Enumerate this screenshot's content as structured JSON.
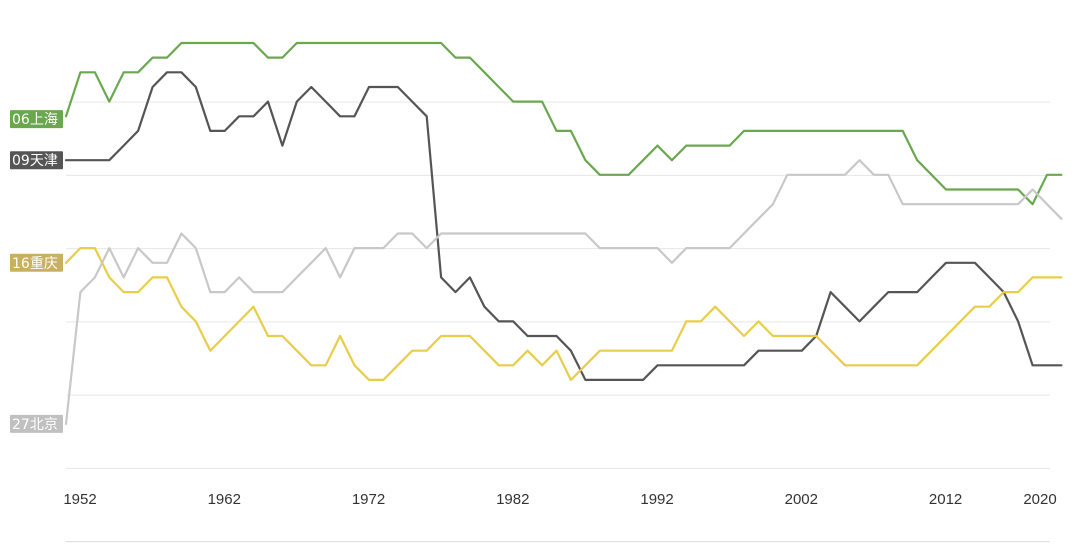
{
  "chart_data": {
    "type": "line",
    "title": "",
    "xlabel": "",
    "ylabel": "",
    "xlim": [
      1952,
      2020
    ],
    "ylim": [
      1,
      35
    ],
    "y_inverted": true,
    "x_ticks": [
      1952,
      1962,
      1972,
      1982,
      1992,
      2002,
      2012,
      2020
    ],
    "y_gridlines": [
      5,
      10,
      15,
      20,
      25,
      30,
      35
    ],
    "grid": "horizontal",
    "legend": "none",
    "series": [
      {
        "name": "06上海",
        "color": "#6aa84f",
        "points": [
          [
            1952,
            6
          ],
          [
            1953,
            3
          ],
          [
            1954,
            3
          ],
          [
            1955,
            5
          ],
          [
            1956,
            3
          ],
          [
            1957,
            3
          ],
          [
            1958,
            2
          ],
          [
            1959,
            2
          ],
          [
            1960,
            1
          ],
          [
            1965,
            1
          ],
          [
            1966,
            2
          ],
          [
            1967,
            2
          ],
          [
            1968,
            1
          ],
          [
            1978,
            1
          ],
          [
            1979,
            2
          ],
          [
            1980,
            2
          ],
          [
            1981,
            3
          ],
          [
            1982,
            4
          ],
          [
            1983,
            5
          ],
          [
            1984,
            5
          ],
          [
            1985,
            5
          ],
          [
            1986,
            7
          ],
          [
            1987,
            7
          ],
          [
            1988,
            9
          ],
          [
            1989,
            10
          ],
          [
            1990,
            10
          ],
          [
            1991,
            10
          ],
          [
            1992,
            9
          ],
          [
            1993,
            8
          ],
          [
            1994,
            9
          ],
          [
            1995,
            8
          ],
          [
            1996,
            8
          ],
          [
            1997,
            8
          ],
          [
            1998,
            8
          ],
          [
            1999,
            7
          ],
          [
            2000,
            7
          ],
          [
            2010,
            7
          ],
          [
            2011,
            9
          ],
          [
            2012,
            10
          ],
          [
            2013,
            11
          ],
          [
            2018,
            11
          ],
          [
            2019,
            12
          ],
          [
            2020,
            10
          ],
          [
            2021,
            10
          ]
        ]
      },
      {
        "name": "09天津",
        "color": "#555555",
        "points": [
          [
            1952,
            9
          ],
          [
            1955,
            9
          ],
          [
            1956,
            8
          ],
          [
            1957,
            7
          ],
          [
            1958,
            4
          ],
          [
            1959,
            3
          ],
          [
            1960,
            3
          ],
          [
            1961,
            4
          ],
          [
            1962,
            7
          ],
          [
            1963,
            7
          ],
          [
            1964,
            6
          ],
          [
            1965,
            6
          ],
          [
            1966,
            5
          ],
          [
            1967,
            8
          ],
          [
            1968,
            5
          ],
          [
            1969,
            4
          ],
          [
            1970,
            5
          ],
          [
            1971,
            6
          ],
          [
            1972,
            6
          ],
          [
            1973,
            4
          ],
          [
            1974,
            4
          ],
          [
            1975,
            4
          ],
          [
            1976,
            5
          ],
          [
            1977,
            6
          ],
          [
            1978,
            17
          ],
          [
            1979,
            18
          ],
          [
            1980,
            17
          ],
          [
            1981,
            19
          ],
          [
            1982,
            20
          ],
          [
            1983,
            20
          ],
          [
            1984,
            21
          ],
          [
            1986,
            21
          ],
          [
            1987,
            22
          ],
          [
            1988,
            24
          ],
          [
            1992,
            24
          ],
          [
            1993,
            23
          ],
          [
            1999,
            23
          ],
          [
            2000,
            22
          ],
          [
            2003,
            22
          ],
          [
            2004,
            21
          ],
          [
            2005,
            18
          ],
          [
            2006,
            19
          ],
          [
            2007,
            20
          ],
          [
            2008,
            19
          ],
          [
            2009,
            18
          ],
          [
            2011,
            18
          ],
          [
            2012,
            17
          ],
          [
            2013,
            16
          ],
          [
            2015,
            16
          ],
          [
            2016,
            17
          ],
          [
            2017,
            18
          ],
          [
            2018,
            20
          ],
          [
            2019,
            23
          ],
          [
            2020,
            23
          ],
          [
            2021,
            23
          ]
        ]
      },
      {
        "name": "16重庆",
        "color": "#e8cd48",
        "points": [
          [
            1952,
            16
          ],
          [
            1953,
            15
          ],
          [
            1954,
            15
          ],
          [
            1955,
            17
          ],
          [
            1956,
            18
          ],
          [
            1957,
            18
          ],
          [
            1958,
            17
          ],
          [
            1959,
            17
          ],
          [
            1960,
            19
          ],
          [
            1961,
            20
          ],
          [
            1962,
            22
          ],
          [
            1963,
            21
          ],
          [
            1964,
            20
          ],
          [
            1965,
            19
          ],
          [
            1966,
            21
          ],
          [
            1967,
            21
          ],
          [
            1968,
            22
          ],
          [
            1969,
            23
          ],
          [
            1970,
            23
          ],
          [
            1971,
            21
          ],
          [
            1972,
            23
          ],
          [
            1973,
            24
          ],
          [
            1974,
            24
          ],
          [
            1975,
            23
          ],
          [
            1976,
            22
          ],
          [
            1977,
            22
          ],
          [
            1978,
            21
          ],
          [
            1980,
            21
          ],
          [
            1981,
            22
          ],
          [
            1982,
            23
          ],
          [
            1983,
            23
          ],
          [
            1984,
            22
          ],
          [
            1985,
            23
          ],
          [
            1986,
            22
          ],
          [
            1987,
            24
          ],
          [
            1988,
            23
          ],
          [
            1989,
            22
          ],
          [
            1994,
            22
          ],
          [
            1995,
            20
          ],
          [
            1996,
            20
          ],
          [
            1997,
            19
          ],
          [
            1998,
            20
          ],
          [
            1999,
            21
          ],
          [
            2000,
            20
          ],
          [
            2001,
            21
          ],
          [
            2004,
            21
          ],
          [
            2005,
            22
          ],
          [
            2006,
            23
          ],
          [
            2011,
            23
          ],
          [
            2012,
            22
          ],
          [
            2013,
            21
          ],
          [
            2014,
            20
          ],
          [
            2015,
            19
          ],
          [
            2016,
            19
          ],
          [
            2017,
            18
          ],
          [
            2018,
            18
          ],
          [
            2019,
            17
          ],
          [
            2021,
            17
          ]
        ]
      },
      {
        "name": "27北京",
        "color": "#c8c8c8",
        "points": [
          [
            1952,
            27
          ],
          [
            1953,
            18
          ],
          [
            1954,
            17
          ],
          [
            1955,
            15
          ],
          [
            1956,
            17
          ],
          [
            1957,
            15
          ],
          [
            1958,
            16
          ],
          [
            1959,
            16
          ],
          [
            1960,
            14
          ],
          [
            1961,
            15
          ],
          [
            1962,
            18
          ],
          [
            1963,
            18
          ],
          [
            1964,
            17
          ],
          [
            1965,
            18
          ],
          [
            1967,
            18
          ],
          [
            1968,
            17
          ],
          [
            1969,
            16
          ],
          [
            1970,
            15
          ],
          [
            1971,
            17
          ],
          [
            1972,
            15
          ],
          [
            1974,
            15
          ],
          [
            1975,
            14
          ],
          [
            1976,
            14
          ],
          [
            1977,
            15
          ],
          [
            1978,
            14
          ],
          [
            1988,
            14
          ],
          [
            1989,
            15
          ],
          [
            1993,
            15
          ],
          [
            1994,
            16
          ],
          [
            1995,
            15
          ],
          [
            1998,
            15
          ],
          [
            1999,
            14
          ],
          [
            2000,
            13
          ],
          [
            2001,
            12
          ],
          [
            2002,
            10
          ],
          [
            2006,
            10
          ],
          [
            2007,
            9
          ],
          [
            2008,
            10
          ],
          [
            2009,
            10
          ],
          [
            2010,
            12
          ],
          [
            2018,
            12
          ],
          [
            2019,
            11
          ],
          [
            2020,
            12
          ],
          [
            2021,
            13
          ]
        ]
      }
    ]
  },
  "series_labels": [
    {
      "text": "06上海",
      "color": "#6aa84f",
      "rank": 6.2
    },
    {
      "text": "09天津",
      "color": "#555555",
      "rank": 9.0
    },
    {
      "text": "16重庆",
      "color": "#c8b060",
      "rank": 16.0
    },
    {
      "text": "27北京",
      "color": "#c0c0c0",
      "rank": 27.0
    }
  ]
}
